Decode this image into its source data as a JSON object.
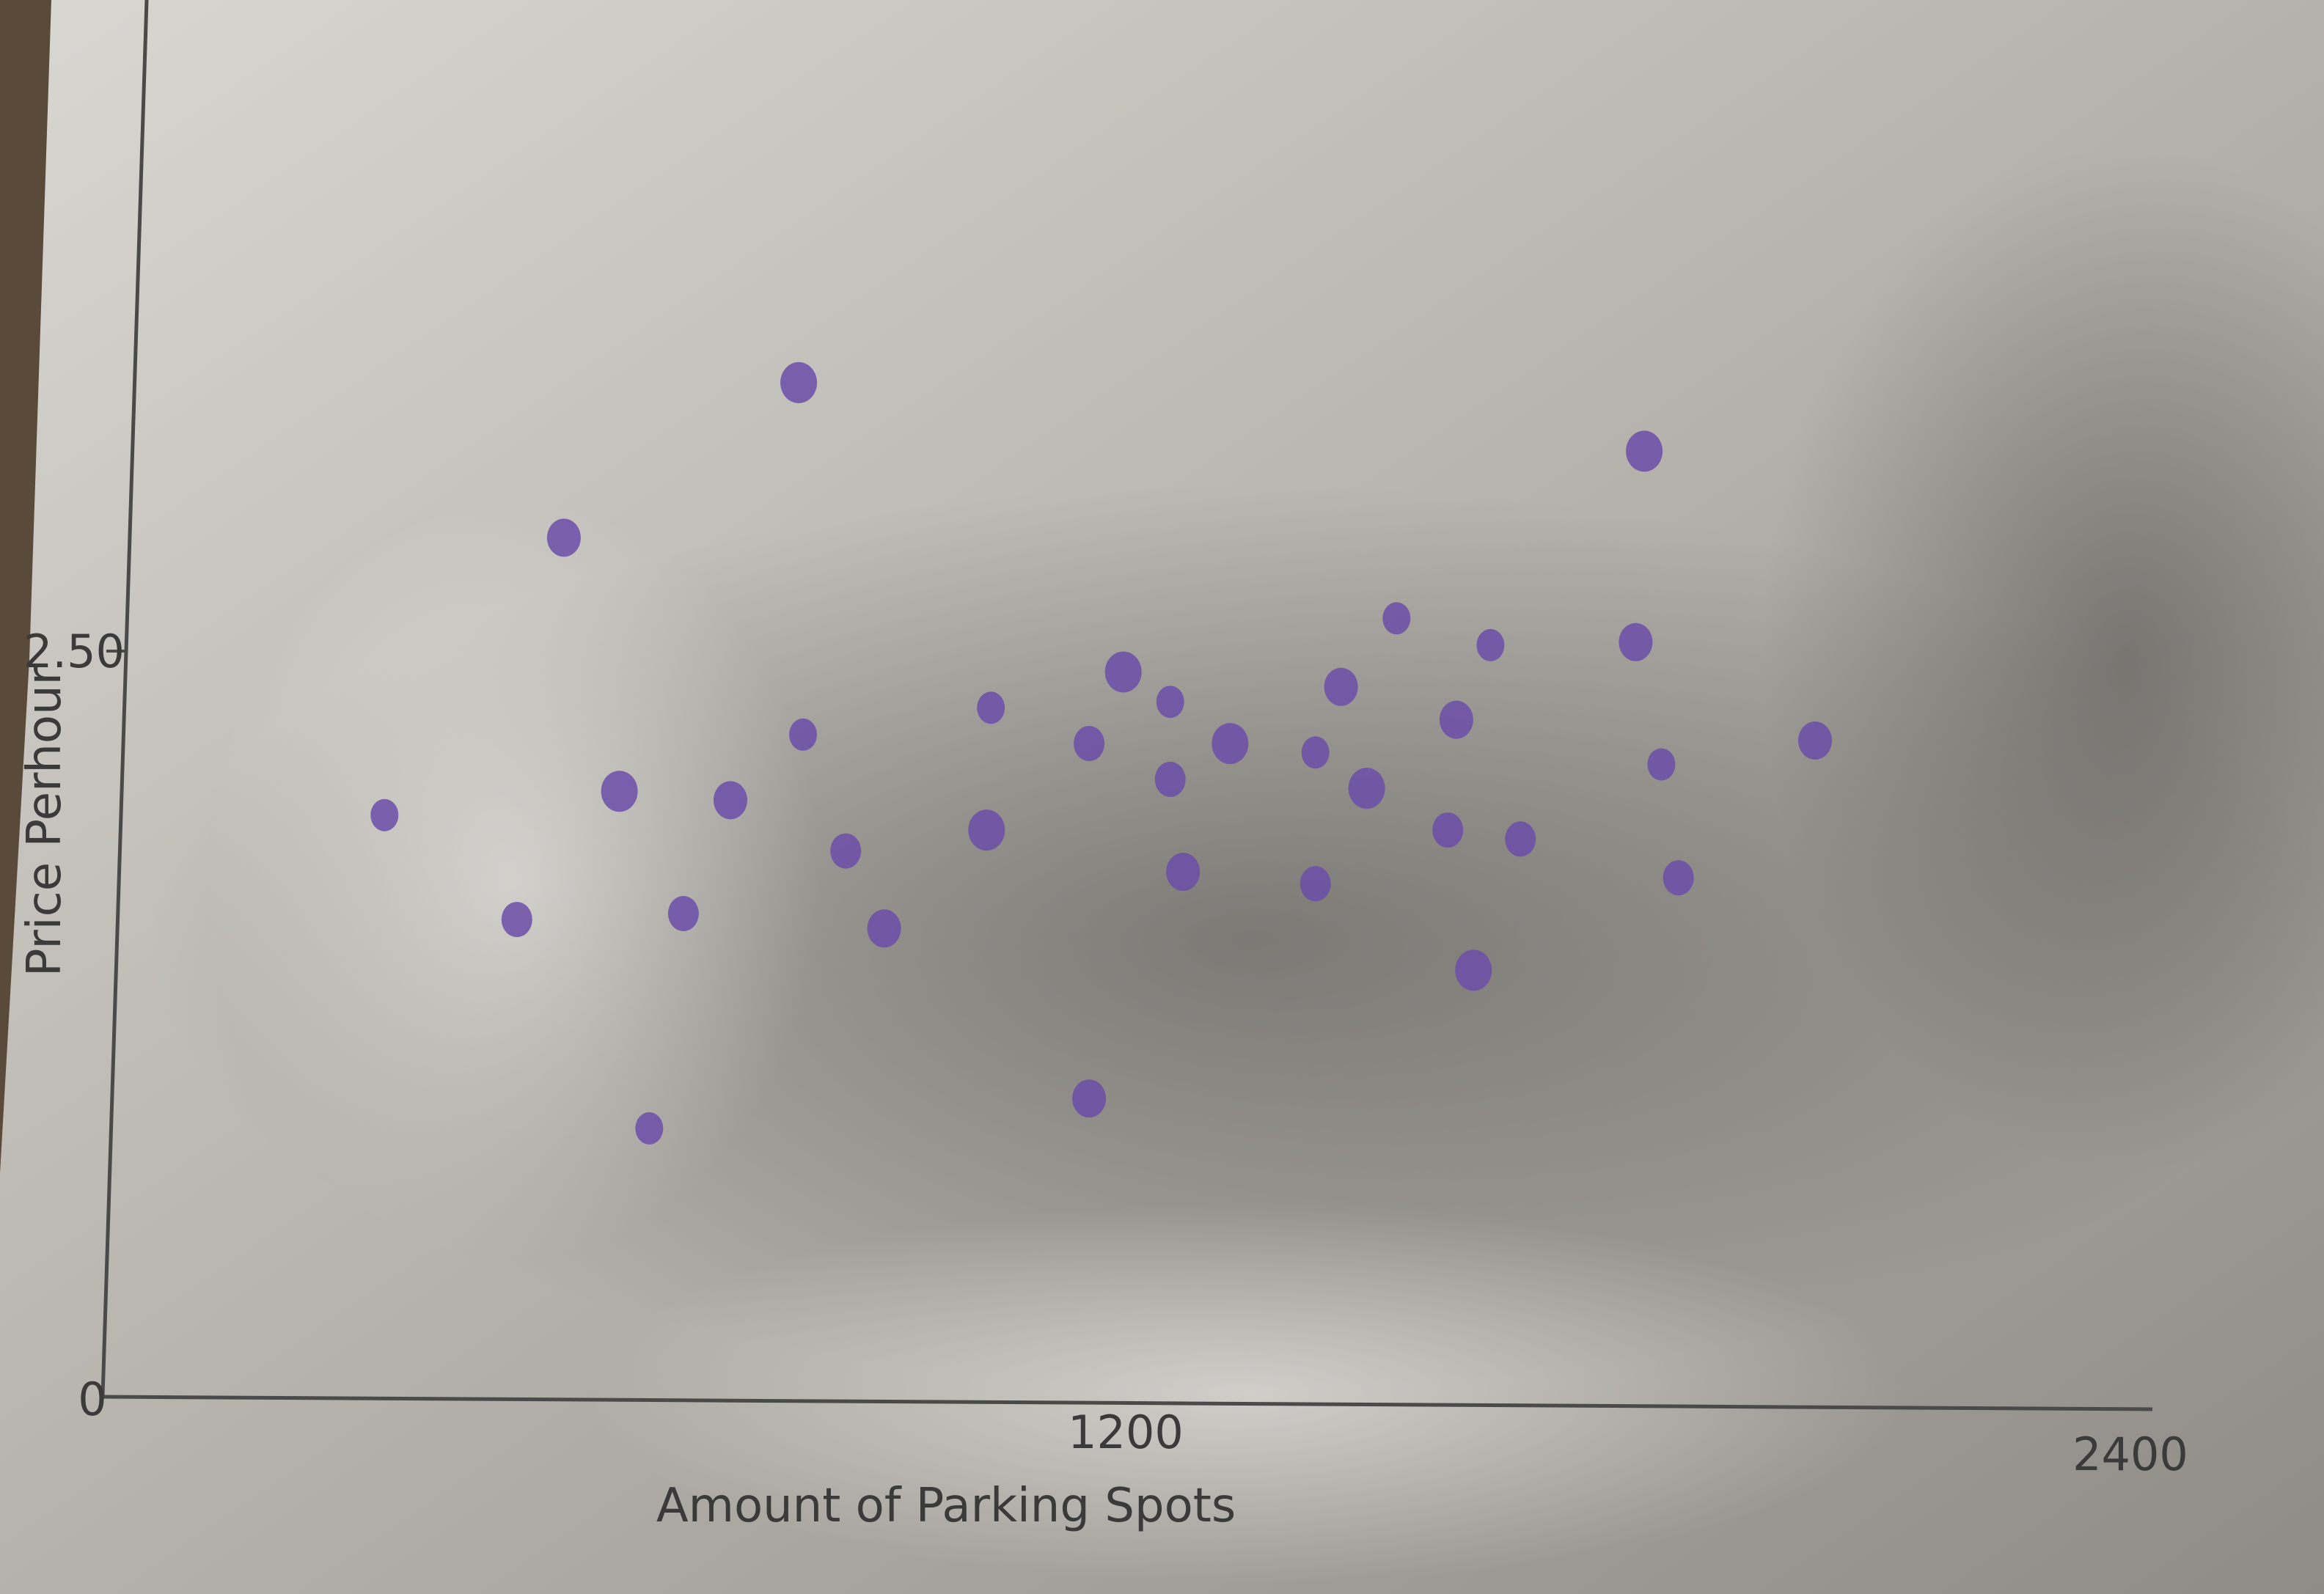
{
  "chart_data": {
    "type": "scatter",
    "title": "",
    "xlabel": "Amount of Parking Spots",
    "ylabel": "Price Perhour",
    "xlim": [
      0,
      2400
    ],
    "ylim": [
      0,
      5
    ],
    "grid": false,
    "x_tick_labels": [
      "0",
      "1200",
      "2400"
    ],
    "y_tick_labels": [
      "2.50"
    ],
    "point_color": "#6b4ea8",
    "points": [
      {
        "x": 330,
        "y": 1.95
      },
      {
        "x": 485,
        "y": 1.6
      },
      {
        "x": 540,
        "y": 2.88
      },
      {
        "x": 605,
        "y": 2.03
      },
      {
        "x": 640,
        "y": 0.9
      },
      {
        "x": 680,
        "y": 1.62
      },
      {
        "x": 735,
        "y": 2.0
      },
      {
        "x": 815,
        "y": 3.4
      },
      {
        "x": 820,
        "y": 2.22
      },
      {
        "x": 870,
        "y": 1.83
      },
      {
        "x": 915,
        "y": 1.57
      },
      {
        "x": 1035,
        "y": 1.9
      },
      {
        "x": 1040,
        "y": 2.31
      },
      {
        "x": 1155,
        "y": 2.19
      },
      {
        "x": 1155,
        "y": 1.0
      },
      {
        "x": 1195,
        "y": 2.43
      },
      {
        "x": 1250,
        "y": 2.33
      },
      {
        "x": 1250,
        "y": 2.07
      },
      {
        "x": 1265,
        "y": 1.76
      },
      {
        "x": 1320,
        "y": 2.19
      },
      {
        "x": 1420,
        "y": 2.16
      },
      {
        "x": 1420,
        "y": 1.72
      },
      {
        "x": 1450,
        "y": 2.38
      },
      {
        "x": 1480,
        "y": 2.04
      },
      {
        "x": 1515,
        "y": 2.61
      },
      {
        "x": 1575,
        "y": 1.9
      },
      {
        "x": 1585,
        "y": 2.27
      },
      {
        "x": 1605,
        "y": 1.43
      },
      {
        "x": 1625,
        "y": 2.52
      },
      {
        "x": 1660,
        "y": 1.87
      },
      {
        "x": 1795,
        "y": 2.53
      },
      {
        "x": 1805,
        "y": 3.17
      },
      {
        "x": 1825,
        "y": 2.12
      },
      {
        "x": 1845,
        "y": 1.74
      },
      {
        "x": 2005,
        "y": 2.2
      }
    ]
  }
}
